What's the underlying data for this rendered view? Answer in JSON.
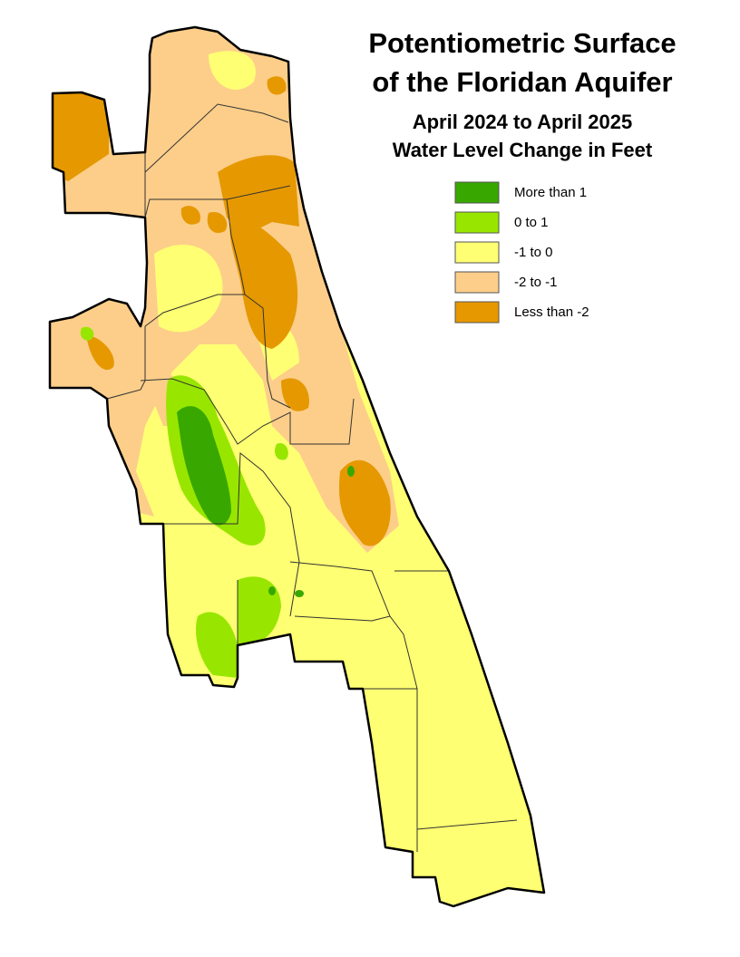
{
  "title": [
    "Potentiometric Surface",
    "of the Floridan Aquifer"
  ],
  "subtitle": [
    "April 2024 to April 2025",
    "Water Level Change in Feet"
  ],
  "legend": [
    {
      "label": "More than 1",
      "color": "#38a800"
    },
    {
      "label": "0 to 1",
      "color": "#98e600"
    },
    {
      "label": "-1 to 0",
      "color": "#ffff73"
    },
    {
      "label": "-2 to -1",
      "color": "#fcce8a"
    },
    {
      "label": "Less than -2",
      "color": "#e69800"
    }
  ]
}
